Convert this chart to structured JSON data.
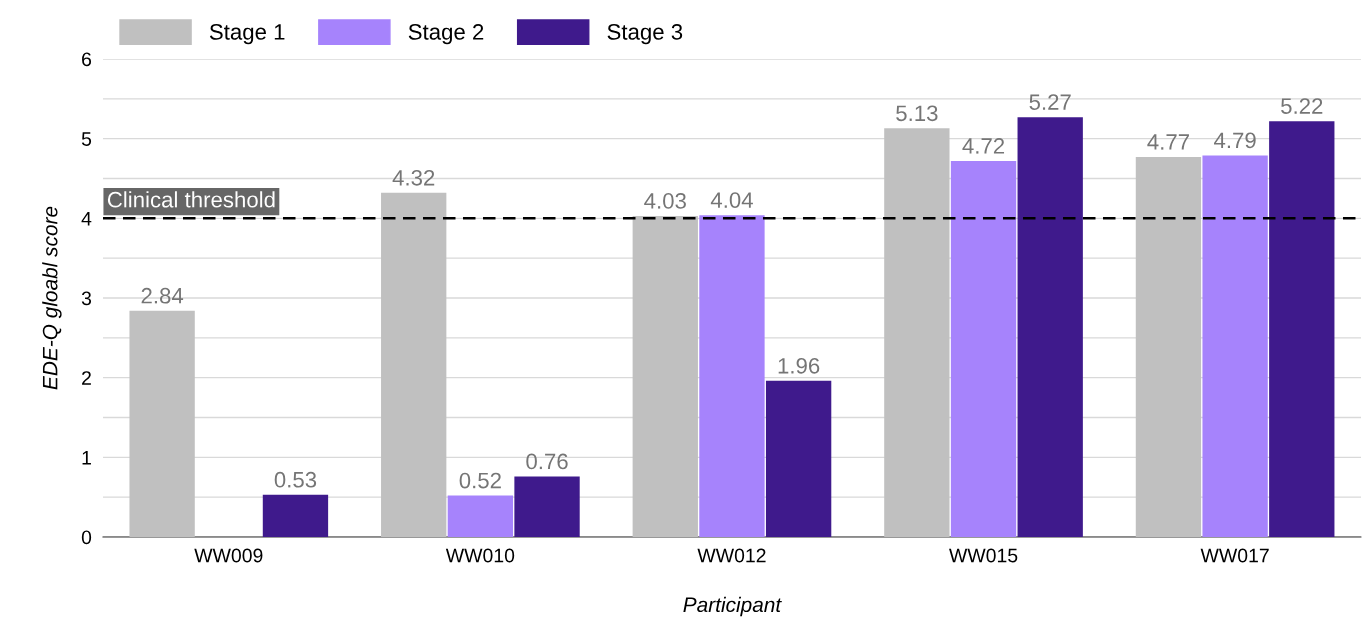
{
  "chart_data": {
    "type": "bar",
    "xlabel": "Participant",
    "ylabel": "EDE-Q gloabl score",
    "categories": [
      "WW009",
      "WW010",
      "WW012",
      "WW015",
      "WW017"
    ],
    "series": [
      {
        "name": "Stage 1",
        "color": "#c0c0c0",
        "values": [
          2.84,
          4.32,
          4.03,
          5.13,
          4.77
        ]
      },
      {
        "name": "Stage 2",
        "color": "#a683fc",
        "values": [
          null,
          0.52,
          4.04,
          4.72,
          4.79
        ]
      },
      {
        "name": "Stage 3",
        "color": "#3f1a8c",
        "values": [
          0.53,
          0.76,
          1.96,
          5.27,
          5.22
        ]
      }
    ],
    "ylim": [
      0,
      6
    ],
    "yticks": [
      0,
      {
        "value": 0.5,
        "label": null
      },
      1,
      {
        "value": 1.5,
        "label": null
      },
      2,
      {
        "value": 2.5,
        "label": null
      },
      3,
      {
        "value": 3.5,
        "label": null
      },
      4,
      {
        "value": 4.5,
        "label": null
      },
      5,
      {
        "value": 5.5,
        "label": null
      },
      6
    ],
    "ref_lines": [
      {
        "axis": "y",
        "value": 4,
        "label": "Clinical threshold",
        "color": "#000000",
        "line_style": "dashed"
      }
    ],
    "data_labels": true,
    "grid": "y",
    "legend": "top left"
  }
}
